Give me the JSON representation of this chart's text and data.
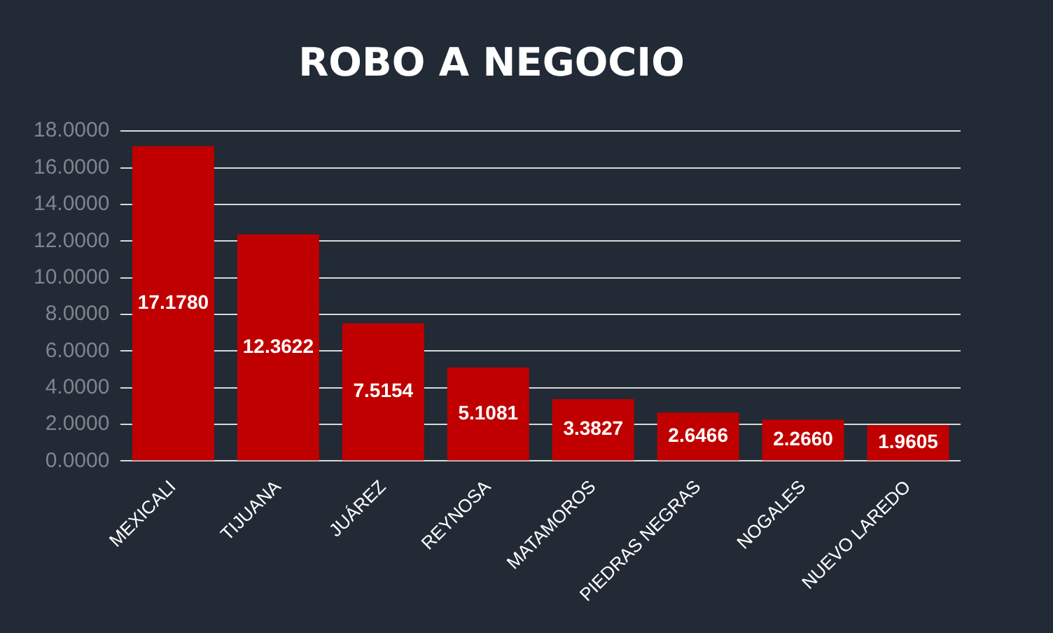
{
  "chart_data": {
    "type": "bar",
    "title": "ROBO A NEGOCIO",
    "categories": [
      "MEXICALI",
      "TIJUANA",
      "JUÁREZ",
      "REYNOSA",
      "MATAMOROS",
      "PIEDRAS NEGRAS",
      "NOGALES",
      "NUEVO LAREDO"
    ],
    "values": [
      17.178,
      12.3622,
      7.5154,
      5.1081,
      3.3827,
      2.6466,
      2.266,
      1.9605
    ],
    "value_labels": [
      "17.1780",
      "12.3622",
      "7.5154",
      "5.1081",
      "3.3827",
      "2.6466",
      "2.2660",
      "1.9605"
    ],
    "color": "#c00000",
    "ylim": [
      0,
      18
    ],
    "yticks": [
      {
        "value": 0,
        "label": "0.0000"
      },
      {
        "value": 2,
        "label": "2.0000"
      },
      {
        "value": 4,
        "label": "4.0000"
      },
      {
        "value": 6,
        "label": "6.0000"
      },
      {
        "value": 8,
        "label": "8.0000"
      },
      {
        "value": 10,
        "label": "10.0000"
      },
      {
        "value": 12,
        "label": "12.0000"
      },
      {
        "value": 14,
        "label": "14.0000"
      },
      {
        "value": 16,
        "label": "16.0000"
      },
      {
        "value": 18,
        "label": "18.0000"
      }
    ],
    "grid": "y"
  }
}
